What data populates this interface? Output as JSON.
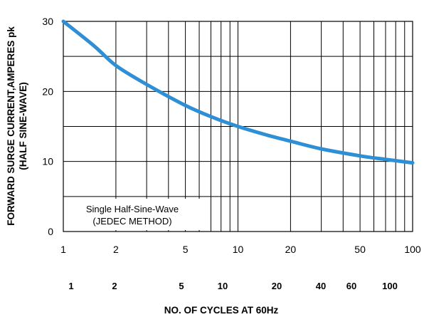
{
  "chart_data": {
    "type": "line",
    "x_scale": "log",
    "xlim": [
      1,
      100
    ],
    "ylim": [
      0,
      30
    ],
    "grid": true,
    "xlabel": "NO. OF CYCLES AT 60Hz",
    "ylabel_line1": "FORWARD SURGE CURRENT,AMPERES pk",
    "ylabel_line2": "(HALF SINE-WAVE)",
    "y_ticks": [
      0,
      10,
      20,
      30
    ],
    "x_ticks_primary": [
      1,
      2,
      5,
      10,
      20,
      50,
      100
    ],
    "x_ticks_secondary": [
      "1",
      "2",
      "5",
      "10",
      "20",
      "40",
      "60",
      "100"
    ],
    "annotation_line1": "Single Half-Sine-Wave",
    "annotation_line2": "(JEDEC METHOD)",
    "line_color": "#2f8fd6",
    "series": [
      {
        "x": [
          1,
          1.5,
          2,
          3,
          5,
          7,
          10,
          15,
          20,
          30,
          50,
          70,
          100
        ],
        "y": [
          30,
          26.5,
          23.7,
          21.0,
          18.0,
          16.4,
          15.0,
          13.7,
          12.9,
          11.8,
          10.8,
          10.3,
          9.8
        ]
      }
    ]
  }
}
